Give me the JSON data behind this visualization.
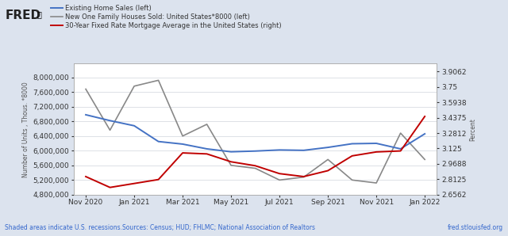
{
  "background_color": "#dce3ee",
  "plot_background_color": "#ffffff",
  "legend_entries": [
    "Existing Home Sales (left)",
    "New One Family Houses Sold: United States*8000 (left)",
    "30-Year Fixed Rate Mortgage Average in the United States (right)"
  ],
  "legend_colors": [
    "#4472c4",
    "#888888",
    "#c00000"
  ],
  "x_labels": [
    "Nov 2020",
    "Jan 2021",
    "Mar 2021",
    "May 2021",
    "Jul 2021",
    "Sep 2021",
    "Nov 2021",
    "Jan 2022"
  ],
  "x_tick_positions": [
    0,
    2,
    4,
    6,
    8,
    10,
    12,
    14
  ],
  "ylabel_left": "Number of Units , Thous. *8000",
  "ylabel_right": "Percent",
  "ylim_left": [
    4800000,
    8371428
  ],
  "ylim_right": [
    2.65625,
    3.984375
  ],
  "yticks_left": [
    4800000,
    5200000,
    5600000,
    6000000,
    6400000,
    6800000,
    7200000,
    7600000,
    8000000
  ],
  "yticks_right": [
    2.65625,
    2.8125,
    2.96875,
    3.125,
    3.28125,
    3.4375,
    3.59375,
    3.75,
    3.90625
  ],
  "footnote": "Shaded areas indicate U.S. recessions.Sources: Census; HUD; FHLMC; National Association of Realtors",
  "footnote_right": "fred.stlouisfed.org",
  "existing_home_sales_x": [
    0,
    1,
    2,
    3,
    4,
    5,
    6,
    7,
    8,
    9,
    10,
    11,
    12,
    13,
    14
  ],
  "existing_home_sales_y": [
    6980000,
    6820000,
    6680000,
    6250000,
    6180000,
    6050000,
    5970000,
    5990000,
    6020000,
    6010000,
    6090000,
    6190000,
    6200000,
    6050000,
    6460000
  ],
  "new_homes_sold_x": [
    0,
    1,
    2,
    3,
    4,
    5,
    6,
    7,
    8,
    9,
    10,
    11,
    12,
    13,
    14
  ],
  "new_homes_sold_y": [
    7680000,
    6560000,
    7760000,
    7920000,
    6400000,
    6720000,
    5600000,
    5520000,
    5200000,
    5280000,
    5760000,
    5200000,
    5120000,
    6480000,
    5760000
  ],
  "mortgage_rate_x": [
    0,
    1,
    2,
    3,
    4,
    5,
    6,
    7,
    8,
    9,
    10,
    11,
    12,
    13,
    14
  ],
  "mortgage_rate_y": [
    2.84,
    2.73,
    2.77,
    2.81,
    3.08,
    3.07,
    2.99,
    2.95,
    2.87,
    2.84,
    2.9,
    3.05,
    3.09,
    3.1,
    3.45
  ]
}
